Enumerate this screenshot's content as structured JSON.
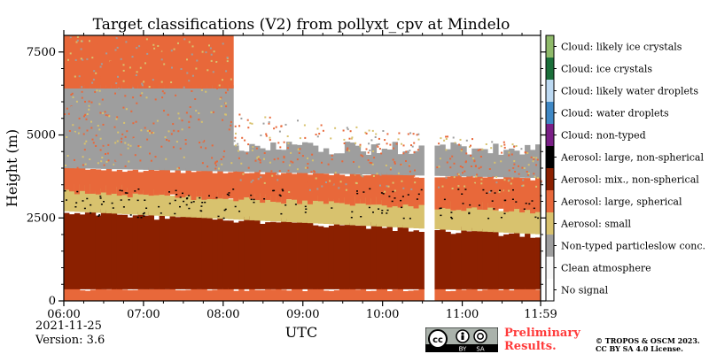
{
  "chart_data": {
    "type": "heatmap",
    "title": "Target classifications (V2) from pollyxt_cpv at Mindelo",
    "xlabel": "UTC",
    "ylabel": "Height (m)",
    "xlim": [
      "06:00",
      "11:59"
    ],
    "ylim": [
      0,
      8000
    ],
    "x_ticks": [
      "06:00",
      "07:00",
      "08:00",
      "09:00",
      "10:00",
      "11:00",
      "11:59"
    ],
    "y_ticks": [
      "0",
      "2500",
      "5000",
      "7500"
    ],
    "data_gap_utc": [
      "10:30",
      "10:40"
    ],
    "colorbar_position": "right",
    "classes": [
      {
        "label": "No signal",
        "color": "#ffffff"
      },
      {
        "label": "Clean atmosphere",
        "color": "#f7f7f7"
      },
      {
        "label": "Non-typed particleslow conc.",
        "color": "#9e9e9e"
      },
      {
        "label": "Aerosol: small",
        "color": "#d8c26e"
      },
      {
        "label": "Aerosol: large, spherical",
        "color": "#e8683a"
      },
      {
        "label": "Aerosol: mix., non-spherical",
        "color": "#8b2000"
      },
      {
        "label": "Aerosol: large, non-spherical",
        "color": "#000000"
      },
      {
        "label": "Cloud: non-typed",
        "color": "#7a1f86"
      },
      {
        "label": "Cloud: water droplets",
        "color": "#3f88c5"
      },
      {
        "label": "Cloud: likely water droplets",
        "color": "#bcd9f2"
      },
      {
        "label": "Cloud: ice crystals",
        "color": "#1b6f3a"
      },
      {
        "label": "Cloud: likely ice crystals",
        "color": "#8fba6a"
      }
    ],
    "layers_m": [
      {
        "class": "Aerosol: large, spherical",
        "bottom": 0,
        "top": 350
      },
      {
        "class": "Aerosol: mix., non-spherical",
        "bottom": 350,
        "top": 2000
      },
      {
        "class": "Aerosol: small",
        "bottom": 2000,
        "top": 2700
      },
      {
        "class": "Aerosol: large, spherical",
        "bottom": 2700,
        "top": 4000
      },
      {
        "class": "Non-typed particleslow conc.",
        "bottom": 4000,
        "top": 6500
      },
      {
        "class": "Aerosol: large, spherical",
        "bottom": 6500,
        "top": 8000
      }
    ]
  },
  "date": "2021-11-25",
  "version": "Version: 3.6",
  "preliminary": [
    "Preliminary",
    "Results."
  ],
  "copyright": [
    "© TROPOS & OSCM 2023.",
    "CC BY SA 4.0 License."
  ],
  "license_badge": [
    "cc",
    "BY",
    "SA"
  ],
  "colors": {
    "prelim": "#ff3b3b",
    "frame": "#000000"
  }
}
